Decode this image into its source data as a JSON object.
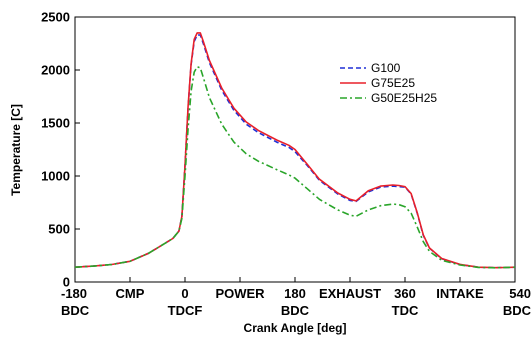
{
  "chart_data": {
    "type": "line",
    "xlabel": "Crank Angle [deg]",
    "ylabel": "Temperature [C]",
    "xlim": [
      -180,
      540
    ],
    "ylim": [
      0,
      2500
    ],
    "grid": false,
    "legend_position": "top-right",
    "x_ticks": [
      {
        "value": -180,
        "labels": [
          "-180",
          "BDC"
        ]
      },
      {
        "value": -90,
        "labels": [
          "CMP"
        ]
      },
      {
        "value": 0,
        "labels": [
          "0",
          "TDCF"
        ]
      },
      {
        "value": 90,
        "labels": [
          "POWER"
        ]
      },
      {
        "value": 180,
        "labels": [
          "180",
          "BDC"
        ]
      },
      {
        "value": 270,
        "labels": [
          "EXHAUST"
        ]
      },
      {
        "value": 360,
        "labels": [
          "360",
          "TDC"
        ]
      },
      {
        "value": 450,
        "labels": [
          "INTAKE"
        ]
      },
      {
        "value": 540,
        "labels": [
          "540",
          "BDC"
        ]
      }
    ],
    "y_ticks": [
      0,
      500,
      1000,
      1500,
      2000,
      2500
    ],
    "series": [
      {
        "name": "G100",
        "color": "#1f2fd6",
        "dash": "dashed",
        "x": [
          -180,
          -150,
          -120,
          -90,
          -60,
          -40,
          -20,
          -10,
          -5,
          0,
          5,
          10,
          15,
          20,
          25,
          30,
          40,
          60,
          80,
          100,
          120,
          150,
          170,
          180,
          200,
          220,
          250,
          270,
          280,
          300,
          320,
          340,
          350,
          360,
          370,
          380,
          390,
          400,
          420,
          450,
          480,
          510,
          540
        ],
        "y": [
          140,
          150,
          165,
          195,
          270,
          340,
          410,
          480,
          620,
          1100,
          1650,
          2050,
          2270,
          2330,
          2330,
          2250,
          2070,
          1810,
          1620,
          1490,
          1410,
          1320,
          1270,
          1230,
          1100,
          960,
          830,
          770,
          760,
          850,
          895,
          905,
          900,
          895,
          830,
          650,
          440,
          320,
          220,
          165,
          140,
          135,
          140
        ]
      },
      {
        "name": "G75E25",
        "color": "#e8202a",
        "dash": "solid",
        "x": [
          -180,
          -150,
          -120,
          -90,
          -60,
          -40,
          -20,
          -10,
          -5,
          0,
          5,
          10,
          15,
          20,
          25,
          30,
          40,
          60,
          80,
          100,
          120,
          150,
          170,
          180,
          200,
          220,
          250,
          270,
          280,
          300,
          320,
          340,
          350,
          360,
          370,
          380,
          390,
          400,
          420,
          450,
          480,
          510,
          540
        ],
        "y": [
          140,
          150,
          165,
          195,
          270,
          340,
          410,
          480,
          620,
          1100,
          1660,
          2060,
          2290,
          2350,
          2350,
          2270,
          2090,
          1830,
          1640,
          1510,
          1430,
          1340,
          1290,
          1250,
          1110,
          970,
          840,
          780,
          765,
          860,
          905,
          915,
          910,
          900,
          835,
          655,
          445,
          322,
          222,
          166,
          140,
          135,
          140
        ]
      },
      {
        "name": "G50E25H25",
        "color": "#2aa52a",
        "dash": "dashdot",
        "x": [
          -180,
          -150,
          -120,
          -90,
          -60,
          -40,
          -20,
          -10,
          -5,
          0,
          5,
          10,
          15,
          20,
          25,
          30,
          40,
          60,
          80,
          100,
          120,
          150,
          170,
          180,
          200,
          220,
          250,
          270,
          280,
          300,
          320,
          340,
          350,
          360,
          370,
          380,
          390,
          400,
          420,
          450,
          480,
          510,
          540
        ],
        "y": [
          140,
          150,
          165,
          195,
          270,
          340,
          410,
          480,
          600,
          1000,
          1450,
          1800,
          1980,
          2030,
          2020,
          1930,
          1740,
          1490,
          1320,
          1210,
          1140,
          1060,
          1010,
          980,
          880,
          780,
          680,
          630,
          620,
          680,
          720,
          735,
          730,
          710,
          650,
          520,
          380,
          290,
          205,
          160,
          138,
          134,
          140
        ]
      }
    ]
  }
}
